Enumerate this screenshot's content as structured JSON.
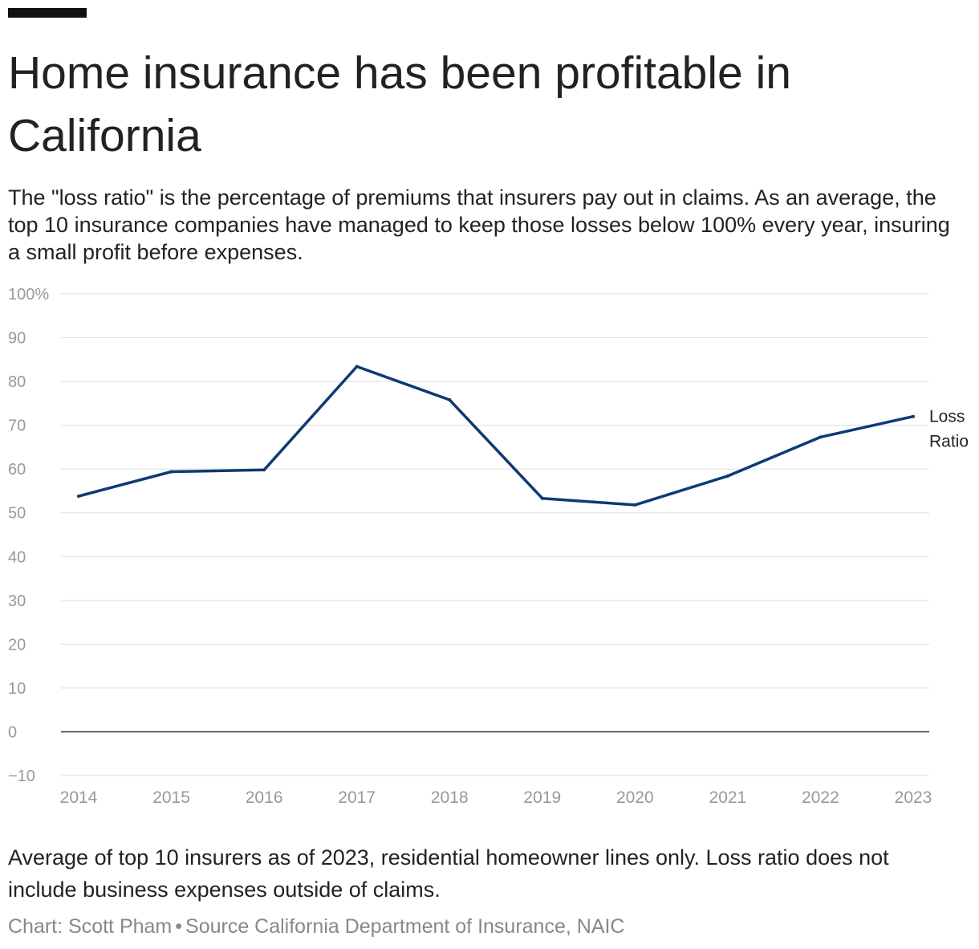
{
  "header": {
    "title": "Home insurance has been profitable in California",
    "subtitle": "The \"loss ratio\" is the percentage of premiums that insurers pay out in claims. As an average, the top 10 insurance companies have managed to keep those losses below 100% every year, insuring a small profit before expenses."
  },
  "footer": {
    "note": "Average of top 10 insurers as of 2023, residential homeowner lines only. Loss ratio does not include business expenses outside of claims.",
    "credit": "Chart: Scott Pham",
    "separator": "•",
    "source": "Source California Department of Insurance, NAIC"
  },
  "colors": {
    "line": "#0f3a73",
    "grid": "#e3e3e3",
    "zero_line": "#333333",
    "tick_text": "#999999",
    "label_text": "#222222"
  },
  "chart_data": {
    "type": "line",
    "title": "Home insurance has been profitable in California",
    "xlabel": "",
    "ylabel": "",
    "x": [
      2014,
      2015,
      2016,
      2017,
      2018,
      2019,
      2020,
      2021,
      2022,
      2023
    ],
    "series": [
      {
        "name": "Loss Ratio",
        "label_lines": [
          "Loss",
          "Ratio"
        ],
        "values": [
          53.8,
          59.4,
          59.8,
          83.4,
          75.8,
          53.3,
          51.8,
          58.4,
          67.3,
          72.0
        ]
      }
    ],
    "ylim": [
      -10,
      100
    ],
    "yticks": [
      -10,
      0,
      10,
      20,
      30,
      40,
      50,
      60,
      70,
      80,
      90,
      100
    ],
    "ytick_labels": [
      "−10",
      "0",
      "10",
      "20",
      "30",
      "40",
      "50",
      "60",
      "70",
      "80",
      "90",
      "100%"
    ],
    "xtick_labels": [
      "2014",
      "2015",
      "2016",
      "2017",
      "2018",
      "2019",
      "2020",
      "2021",
      "2022",
      "2023"
    ],
    "grid": true,
    "legend": "direct label at right end of line"
  }
}
